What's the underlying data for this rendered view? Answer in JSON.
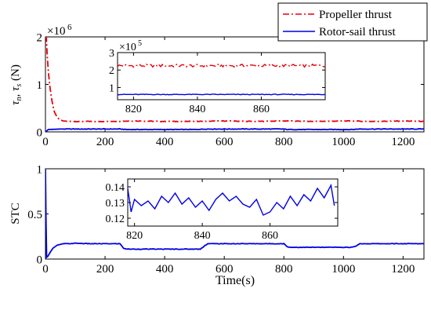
{
  "legend": {
    "items": [
      {
        "label": "Propeller thrust",
        "color": "#e8000b",
        "dash": "dashdot"
      },
      {
        "label": "Rotor-sail thrust",
        "color": "#0000e6",
        "dash": "solid"
      }
    ],
    "placement": "top-right"
  },
  "chart_data": [
    {
      "id": "top-main",
      "type": "line",
      "ylabel": "τ_n, τ_s (N)",
      "xlabel": "",
      "multiplier": "×10^6",
      "xlim": [
        0,
        1270
      ],
      "ylim": [
        0,
        2
      ],
      "xticks": [
        0,
        200,
        400,
        600,
        800,
        1000,
        1200
      ],
      "yticks": [
        0,
        1,
        2
      ],
      "series": [
        {
          "name": "Propeller thrust",
          "color": "#e8000b",
          "x": [
            0,
            3,
            6,
            10,
            15,
            20,
            25,
            30,
            40,
            50,
            60,
            80,
            100,
            200,
            300,
            400,
            500,
            600,
            700,
            800,
            900,
            1000,
            1100,
            1200,
            1270
          ],
          "y": [
            1.98,
            2.0,
            1.6,
            1.25,
            0.95,
            0.72,
            0.55,
            0.42,
            0.3,
            0.25,
            0.23,
            0.22,
            0.22,
            0.22,
            0.23,
            0.22,
            0.22,
            0.23,
            0.22,
            0.23,
            0.22,
            0.23,
            0.22,
            0.23,
            0.22
          ]
        },
        {
          "name": "Rotor-sail thrust",
          "color": "#0000e6",
          "x": [
            0,
            10,
            50,
            250,
            270,
            500,
            540,
            800,
            810,
            1030,
            1050,
            1270
          ],
          "y": [
            0.0,
            0.05,
            0.06,
            0.06,
            0.05,
            0.05,
            0.06,
            0.06,
            0.05,
            0.05,
            0.06,
            0.06
          ]
        }
      ]
    },
    {
      "id": "top-inset",
      "type": "line",
      "multiplier": "×10^5",
      "xlim": [
        815,
        880
      ],
      "ylim": [
        0.3,
        3
      ],
      "xticks": [
        820,
        840,
        860
      ],
      "yticks": [
        1,
        2,
        3
      ],
      "series": [
        {
          "name": "Propeller thrust",
          "color": "#e8000b",
          "mean": 2.25,
          "amplitude": 0.08
        },
        {
          "name": "Rotor-sail thrust",
          "color": "#0000e6",
          "mean": 0.6,
          "amplitude": 0.02
        }
      ]
    },
    {
      "id": "bottom-main",
      "type": "line",
      "ylabel": "STC",
      "xlabel": "Time(s)",
      "xlim": [
        0,
        1270
      ],
      "ylim": [
        0,
        1
      ],
      "xticks": [
        0,
        200,
        400,
        600,
        800,
        1000,
        1200
      ],
      "yticks": [
        0,
        0.5,
        1
      ],
      "series": [
        {
          "name": "STC",
          "color": "#0000e6",
          "x": [
            0,
            2,
            4,
            8,
            15,
            25,
            40,
            60,
            80,
            100,
            150,
            200,
            250,
            262,
            275,
            400,
            520,
            535,
            545,
            700,
            800,
            810,
            820,
            950,
            1030,
            1045,
            1055,
            1270
          ],
          "y": [
            1.0,
            0.4,
            0.02,
            0.03,
            0.07,
            0.12,
            0.155,
            0.17,
            0.17,
            0.175,
            0.17,
            0.17,
            0.17,
            0.12,
            0.11,
            0.11,
            0.11,
            0.15,
            0.17,
            0.17,
            0.17,
            0.14,
            0.13,
            0.13,
            0.13,
            0.15,
            0.17,
            0.17
          ]
        }
      ]
    },
    {
      "id": "bottom-inset",
      "type": "line",
      "xlim": [
        818,
        880
      ],
      "ylim": [
        0.115,
        0.145
      ],
      "xticks": [
        820,
        840,
        860
      ],
      "yticks": [
        0.12,
        0.13,
        0.14
      ],
      "series": [
        {
          "name": "STC",
          "color": "#0000e6",
          "x": [
            818,
            819,
            820,
            822,
            824,
            826,
            828,
            830,
            832,
            834,
            836,
            838,
            840,
            842,
            844,
            846,
            848,
            850,
            852,
            854,
            856,
            858,
            860,
            862,
            864,
            866,
            868,
            870,
            872,
            874,
            876,
            878,
            879
          ],
          "y": [
            0.139,
            0.124,
            0.132,
            0.128,
            0.131,
            0.126,
            0.134,
            0.13,
            0.136,
            0.129,
            0.133,
            0.127,
            0.131,
            0.125,
            0.132,
            0.136,
            0.131,
            0.134,
            0.129,
            0.127,
            0.132,
            0.122,
            0.124,
            0.13,
            0.126,
            0.134,
            0.128,
            0.135,
            0.131,
            0.139,
            0.133,
            0.141,
            0.128
          ]
        }
      ]
    }
  ]
}
